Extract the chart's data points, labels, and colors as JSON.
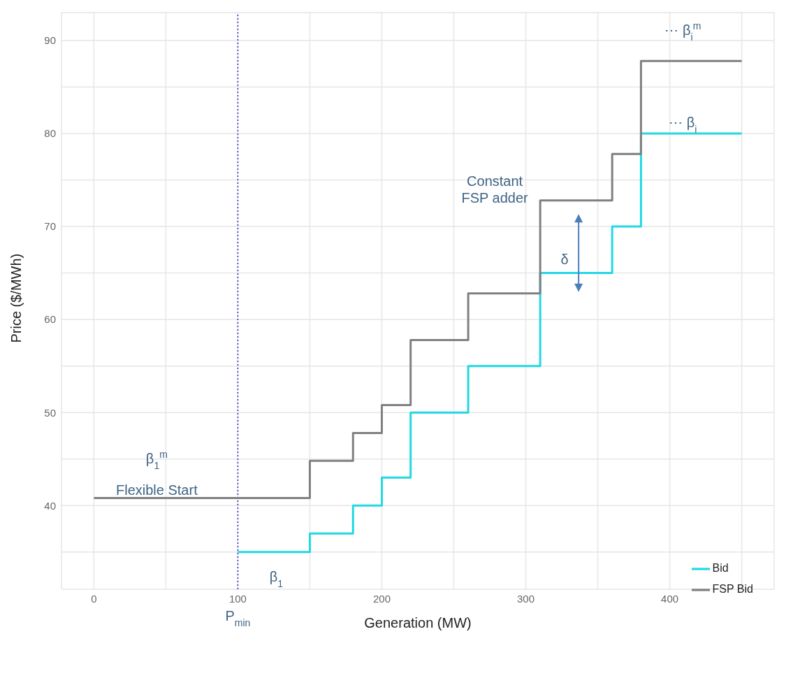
{
  "chart_data": {
    "type": "step",
    "xlabel": "Generation (MW)",
    "ylabel": "Price ($/MWh)",
    "xlim": [
      -22.5,
      472.5
    ],
    "xticks": [
      0,
      {
        "value": 50,
        "label": null
      },
      100,
      {
        "value": 150,
        "label": null
      },
      200,
      {
        "value": 250,
        "label": null
      },
      300,
      {
        "value": 350,
        "label": null
      },
      400,
      {
        "value": 450,
        "label": null
      }
    ],
    "ylim": [
      31,
      93
    ],
    "yticks": [
      {
        "value": 35,
        "label": null
      },
      40,
      {
        "value": 45,
        "label": null
      },
      50,
      {
        "value": 55,
        "label": null
      },
      60,
      {
        "value": 65,
        "label": null
      },
      70,
      {
        "value": 75,
        "label": null
      },
      80,
      {
        "value": 85,
        "label": null
      },
      90
    ],
    "series": [
      {
        "name": "Bid",
        "color": "#22d8e3",
        "x": [
          100,
          150,
          180,
          200,
          220,
          260,
          310,
          360,
          380,
          450
        ],
        "values": [
          35,
          37,
          40,
          43,
          50,
          55,
          65,
          70,
          80,
          80
        ]
      },
      {
        "name": "FSP Bid",
        "color": "#808080",
        "x": [
          0,
          150,
          180,
          200,
          220,
          260,
          310,
          360,
          380,
          450
        ],
        "values": [
          40.8,
          44.8,
          47.8,
          50.8,
          57.8,
          62.8,
          72.8,
          77.8,
          87.8,
          87.8
        ]
      }
    ],
    "ref_lines": [
      {
        "axis": "x",
        "value": 100,
        "color": "#2b2bcc",
        "line_style": "dotted"
      }
    ],
    "annotations": [
      "P$_{min}$",
      "β$_{1}$",
      "β$_{1}$$^{m}$",
      "Flexible  Start",
      "Constant\nFSP adder",
      "δ",
      "⋯ β$_{i}$",
      "⋯ β$_{i}$$^{m}$"
    ],
    "grid": true,
    "legend": "bottom right",
    "line_style": "solid",
    "marker": "none"
  }
}
